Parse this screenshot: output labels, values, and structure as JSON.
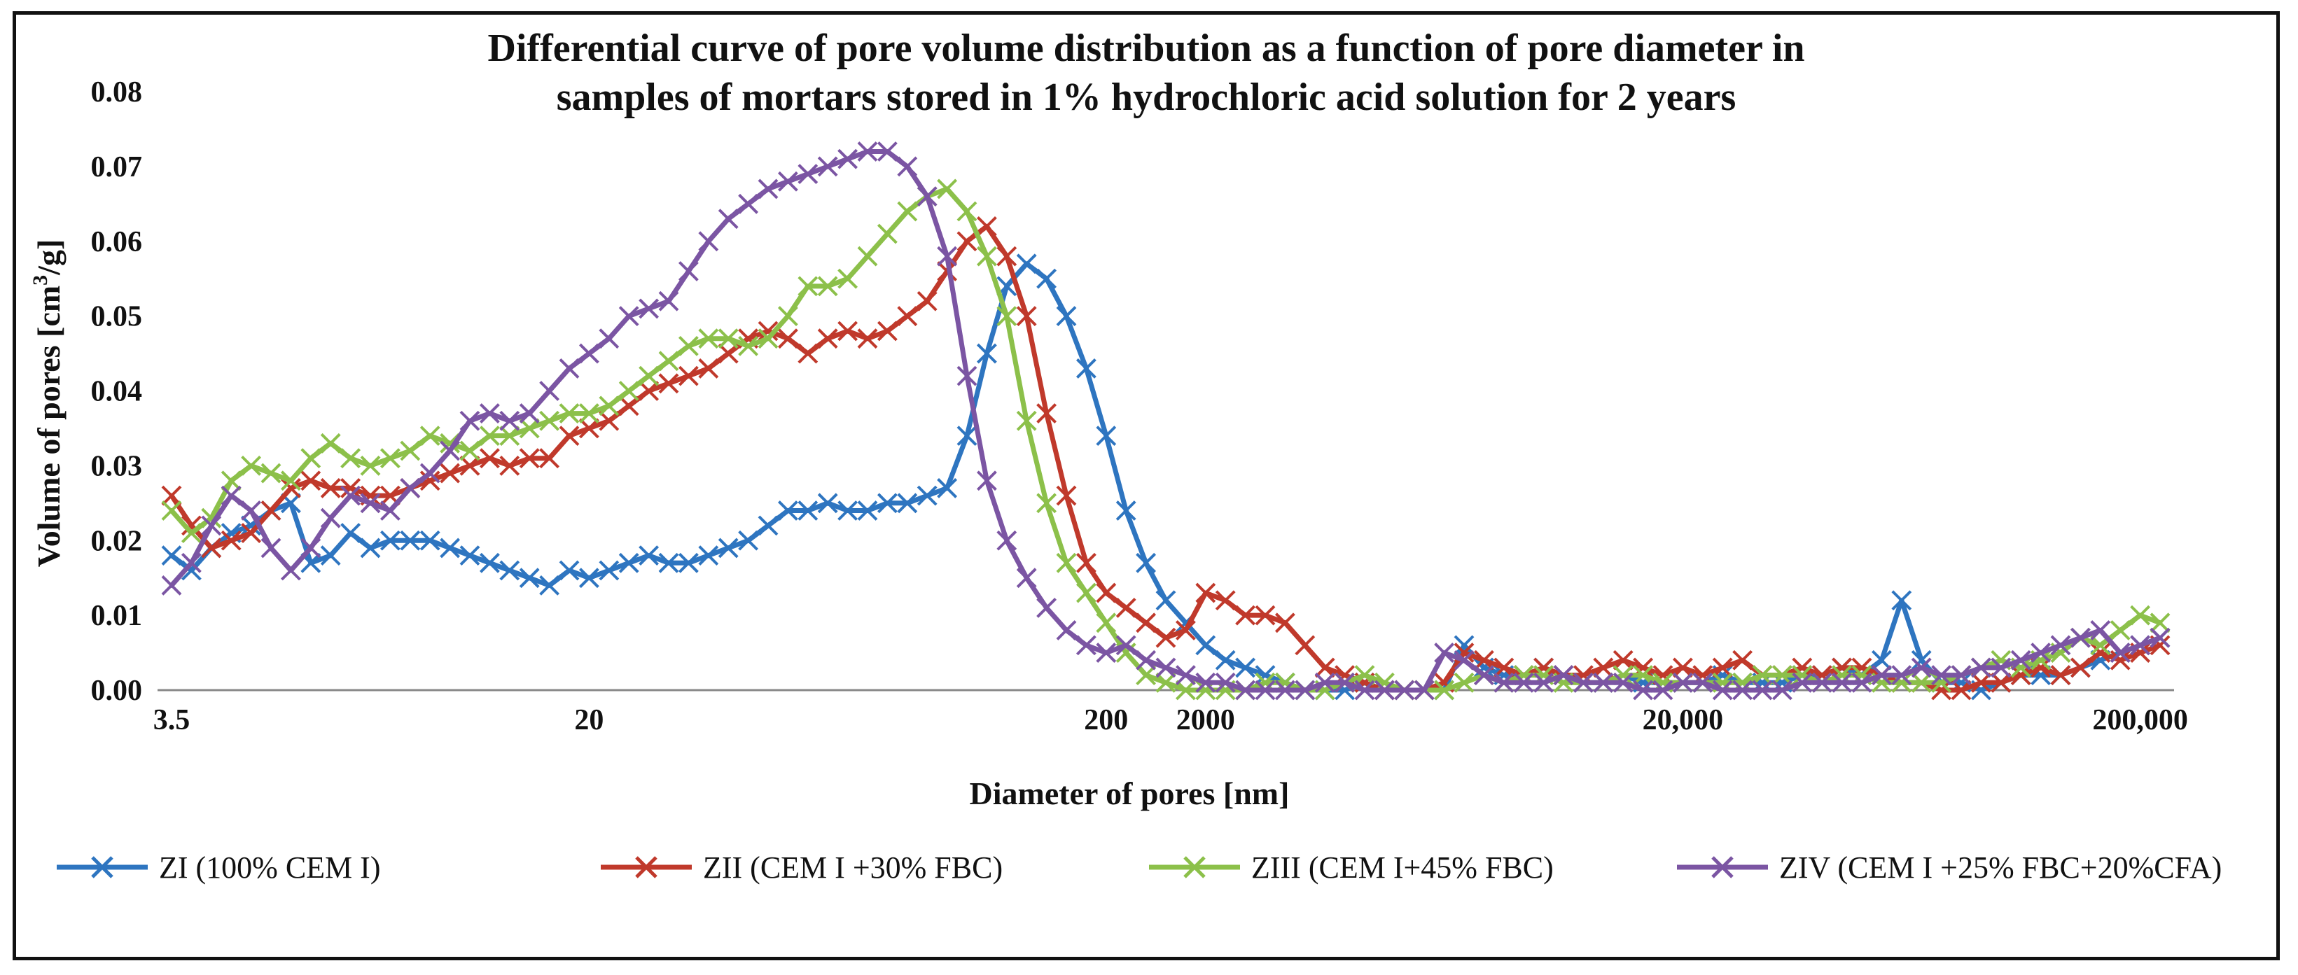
{
  "chart_data": {
    "type": "line",
    "title_line1": "Differential curve of pore volume distribution as a function of pore diameter in",
    "title_line2": "samples of mortars stored in 1% hydrochloric acid solution for 2 years",
    "xlabel": "Diameter of pores [nm]",
    "ylabel_prefix": "Volume of pores [cm",
    "ylabel_sup": "3",
    "ylabel_suffix": "/g]",
    "ylim": [
      0,
      0.08
    ],
    "y_ticks": [
      "0.00",
      "0.01",
      "0.02",
      "0.03",
      "0.04",
      "0.05",
      "0.06",
      "0.07",
      "0.08"
    ],
    "x_categories_count": 101,
    "x_tick_labels": [
      {
        "index": 0,
        "label": "3.5"
      },
      {
        "index": 21,
        "label": "20"
      },
      {
        "index": 47,
        "label": "200"
      },
      {
        "index": 52,
        "label": "2000"
      },
      {
        "index": 76,
        "label": "20,000"
      },
      {
        "index": 99,
        "label": "200,000"
      }
    ],
    "series": [
      {
        "name": "ZI (100% CEM I)",
        "color": "#2e75c0",
        "values": [
          0.018,
          0.016,
          0.019,
          0.021,
          0.022,
          0.024,
          0.025,
          0.017,
          0.018,
          0.021,
          0.019,
          0.02,
          0.02,
          0.02,
          0.019,
          0.018,
          0.017,
          0.016,
          0.015,
          0.014,
          0.016,
          0.015,
          0.016,
          0.017,
          0.018,
          0.017,
          0.017,
          0.018,
          0.019,
          0.02,
          0.022,
          0.024,
          0.024,
          0.025,
          0.024,
          0.024,
          0.025,
          0.025,
          0.026,
          0.027,
          0.034,
          0.045,
          0.054,
          0.057,
          0.055,
          0.05,
          0.043,
          0.034,
          0.024,
          0.017,
          0.012,
          0.009,
          0.006,
          0.004,
          0.003,
          0.002,
          0.001,
          0.0,
          0.0,
          0.0,
          0.001,
          0.0,
          0.0,
          0.0,
          0.0,
          0.006,
          0.003,
          0.002,
          0.002,
          0.003,
          0.002,
          0.001,
          0.001,
          0.002,
          0.001,
          0.001,
          0.001,
          0.001,
          0.002,
          0.001,
          0.001,
          0.001,
          0.002,
          0.002,
          0.003,
          0.002,
          0.004,
          0.012,
          0.004,
          0.001,
          0.001,
          0.0,
          0.001,
          0.002,
          0.002,
          0.002,
          0.003,
          0.004,
          0.005,
          0.006,
          0.007
        ]
      },
      {
        "name": "ZII (CEM I +30% FBC)",
        "color": "#c0392b",
        "values": [
          0.026,
          0.022,
          0.019,
          0.02,
          0.021,
          0.024,
          0.027,
          0.028,
          0.027,
          0.027,
          0.026,
          0.026,
          0.027,
          0.028,
          0.029,
          0.03,
          0.031,
          0.03,
          0.031,
          0.031,
          0.034,
          0.035,
          0.036,
          0.038,
          0.04,
          0.041,
          0.042,
          0.043,
          0.045,
          0.047,
          0.048,
          0.047,
          0.045,
          0.047,
          0.048,
          0.047,
          0.048,
          0.05,
          0.052,
          0.056,
          0.06,
          0.062,
          0.058,
          0.05,
          0.037,
          0.026,
          0.017,
          0.013,
          0.011,
          0.009,
          0.007,
          0.008,
          0.013,
          0.012,
          0.01,
          0.01,
          0.009,
          0.006,
          0.003,
          0.002,
          0.001,
          0.0,
          0.0,
          0.0,
          0.001,
          0.005,
          0.004,
          0.003,
          0.002,
          0.003,
          0.002,
          0.002,
          0.003,
          0.004,
          0.003,
          0.002,
          0.003,
          0.002,
          0.003,
          0.004,
          0.002,
          0.002,
          0.003,
          0.002,
          0.003,
          0.003,
          0.002,
          0.001,
          0.001,
          0.0,
          0.0,
          0.001,
          0.001,
          0.002,
          0.003,
          0.002,
          0.003,
          0.005,
          0.004,
          0.005,
          0.006
        ]
      },
      {
        "name": "ZIII (CEM I+45% FBC)",
        "color": "#8cc04a",
        "values": [
          0.024,
          0.021,
          0.023,
          0.028,
          0.03,
          0.029,
          0.028,
          0.031,
          0.033,
          0.031,
          0.03,
          0.031,
          0.032,
          0.034,
          0.033,
          0.032,
          0.034,
          0.034,
          0.035,
          0.036,
          0.037,
          0.037,
          0.038,
          0.04,
          0.042,
          0.044,
          0.046,
          0.047,
          0.047,
          0.046,
          0.047,
          0.05,
          0.054,
          0.054,
          0.055,
          0.058,
          0.061,
          0.064,
          0.066,
          0.067,
          0.064,
          0.058,
          0.05,
          0.036,
          0.025,
          0.017,
          0.013,
          0.009,
          0.005,
          0.002,
          0.001,
          0.0,
          0.0,
          0.0,
          0.0,
          0.001,
          0.001,
          0.0,
          0.0,
          0.001,
          0.002,
          0.001,
          0.0,
          0.0,
          0.0,
          0.001,
          0.002,
          0.001,
          0.002,
          0.002,
          0.001,
          0.001,
          0.001,
          0.002,
          0.002,
          0.001,
          0.001,
          0.001,
          0.001,
          0.001,
          0.002,
          0.002,
          0.002,
          0.001,
          0.002,
          0.002,
          0.001,
          0.001,
          0.001,
          0.001,
          0.002,
          0.003,
          0.004,
          0.003,
          0.004,
          0.005,
          0.007,
          0.006,
          0.008,
          0.01,
          0.009
        ]
      },
      {
        "name": "ZIV (CEM I +25% FBC+20%CFA)",
        "color": "#7b55a3",
        "values": [
          0.014,
          0.017,
          0.022,
          0.026,
          0.024,
          0.019,
          0.016,
          0.019,
          0.023,
          0.026,
          0.025,
          0.024,
          0.027,
          0.029,
          0.032,
          0.036,
          0.037,
          0.036,
          0.037,
          0.04,
          0.043,
          0.045,
          0.047,
          0.05,
          0.051,
          0.052,
          0.056,
          0.06,
          0.063,
          0.065,
          0.067,
          0.068,
          0.069,
          0.07,
          0.071,
          0.072,
          0.072,
          0.07,
          0.066,
          0.058,
          0.042,
          0.028,
          0.02,
          0.015,
          0.011,
          0.008,
          0.006,
          0.005,
          0.006,
          0.004,
          0.003,
          0.002,
          0.001,
          0.001,
          0.0,
          0.0,
          0.0,
          0.0,
          0.001,
          0.001,
          0.0,
          0.0,
          0.0,
          0.0,
          0.005,
          0.004,
          0.002,
          0.001,
          0.001,
          0.001,
          0.002,
          0.001,
          0.001,
          0.001,
          0.0,
          0.0,
          0.001,
          0.001,
          0.0,
          0.0,
          0.0,
          0.0,
          0.001,
          0.001,
          0.001,
          0.001,
          0.002,
          0.002,
          0.003,
          0.002,
          0.002,
          0.003,
          0.003,
          0.004,
          0.005,
          0.006,
          0.007,
          0.008,
          0.005,
          0.006,
          0.007
        ]
      }
    ],
    "legend_position": "bottom"
  }
}
